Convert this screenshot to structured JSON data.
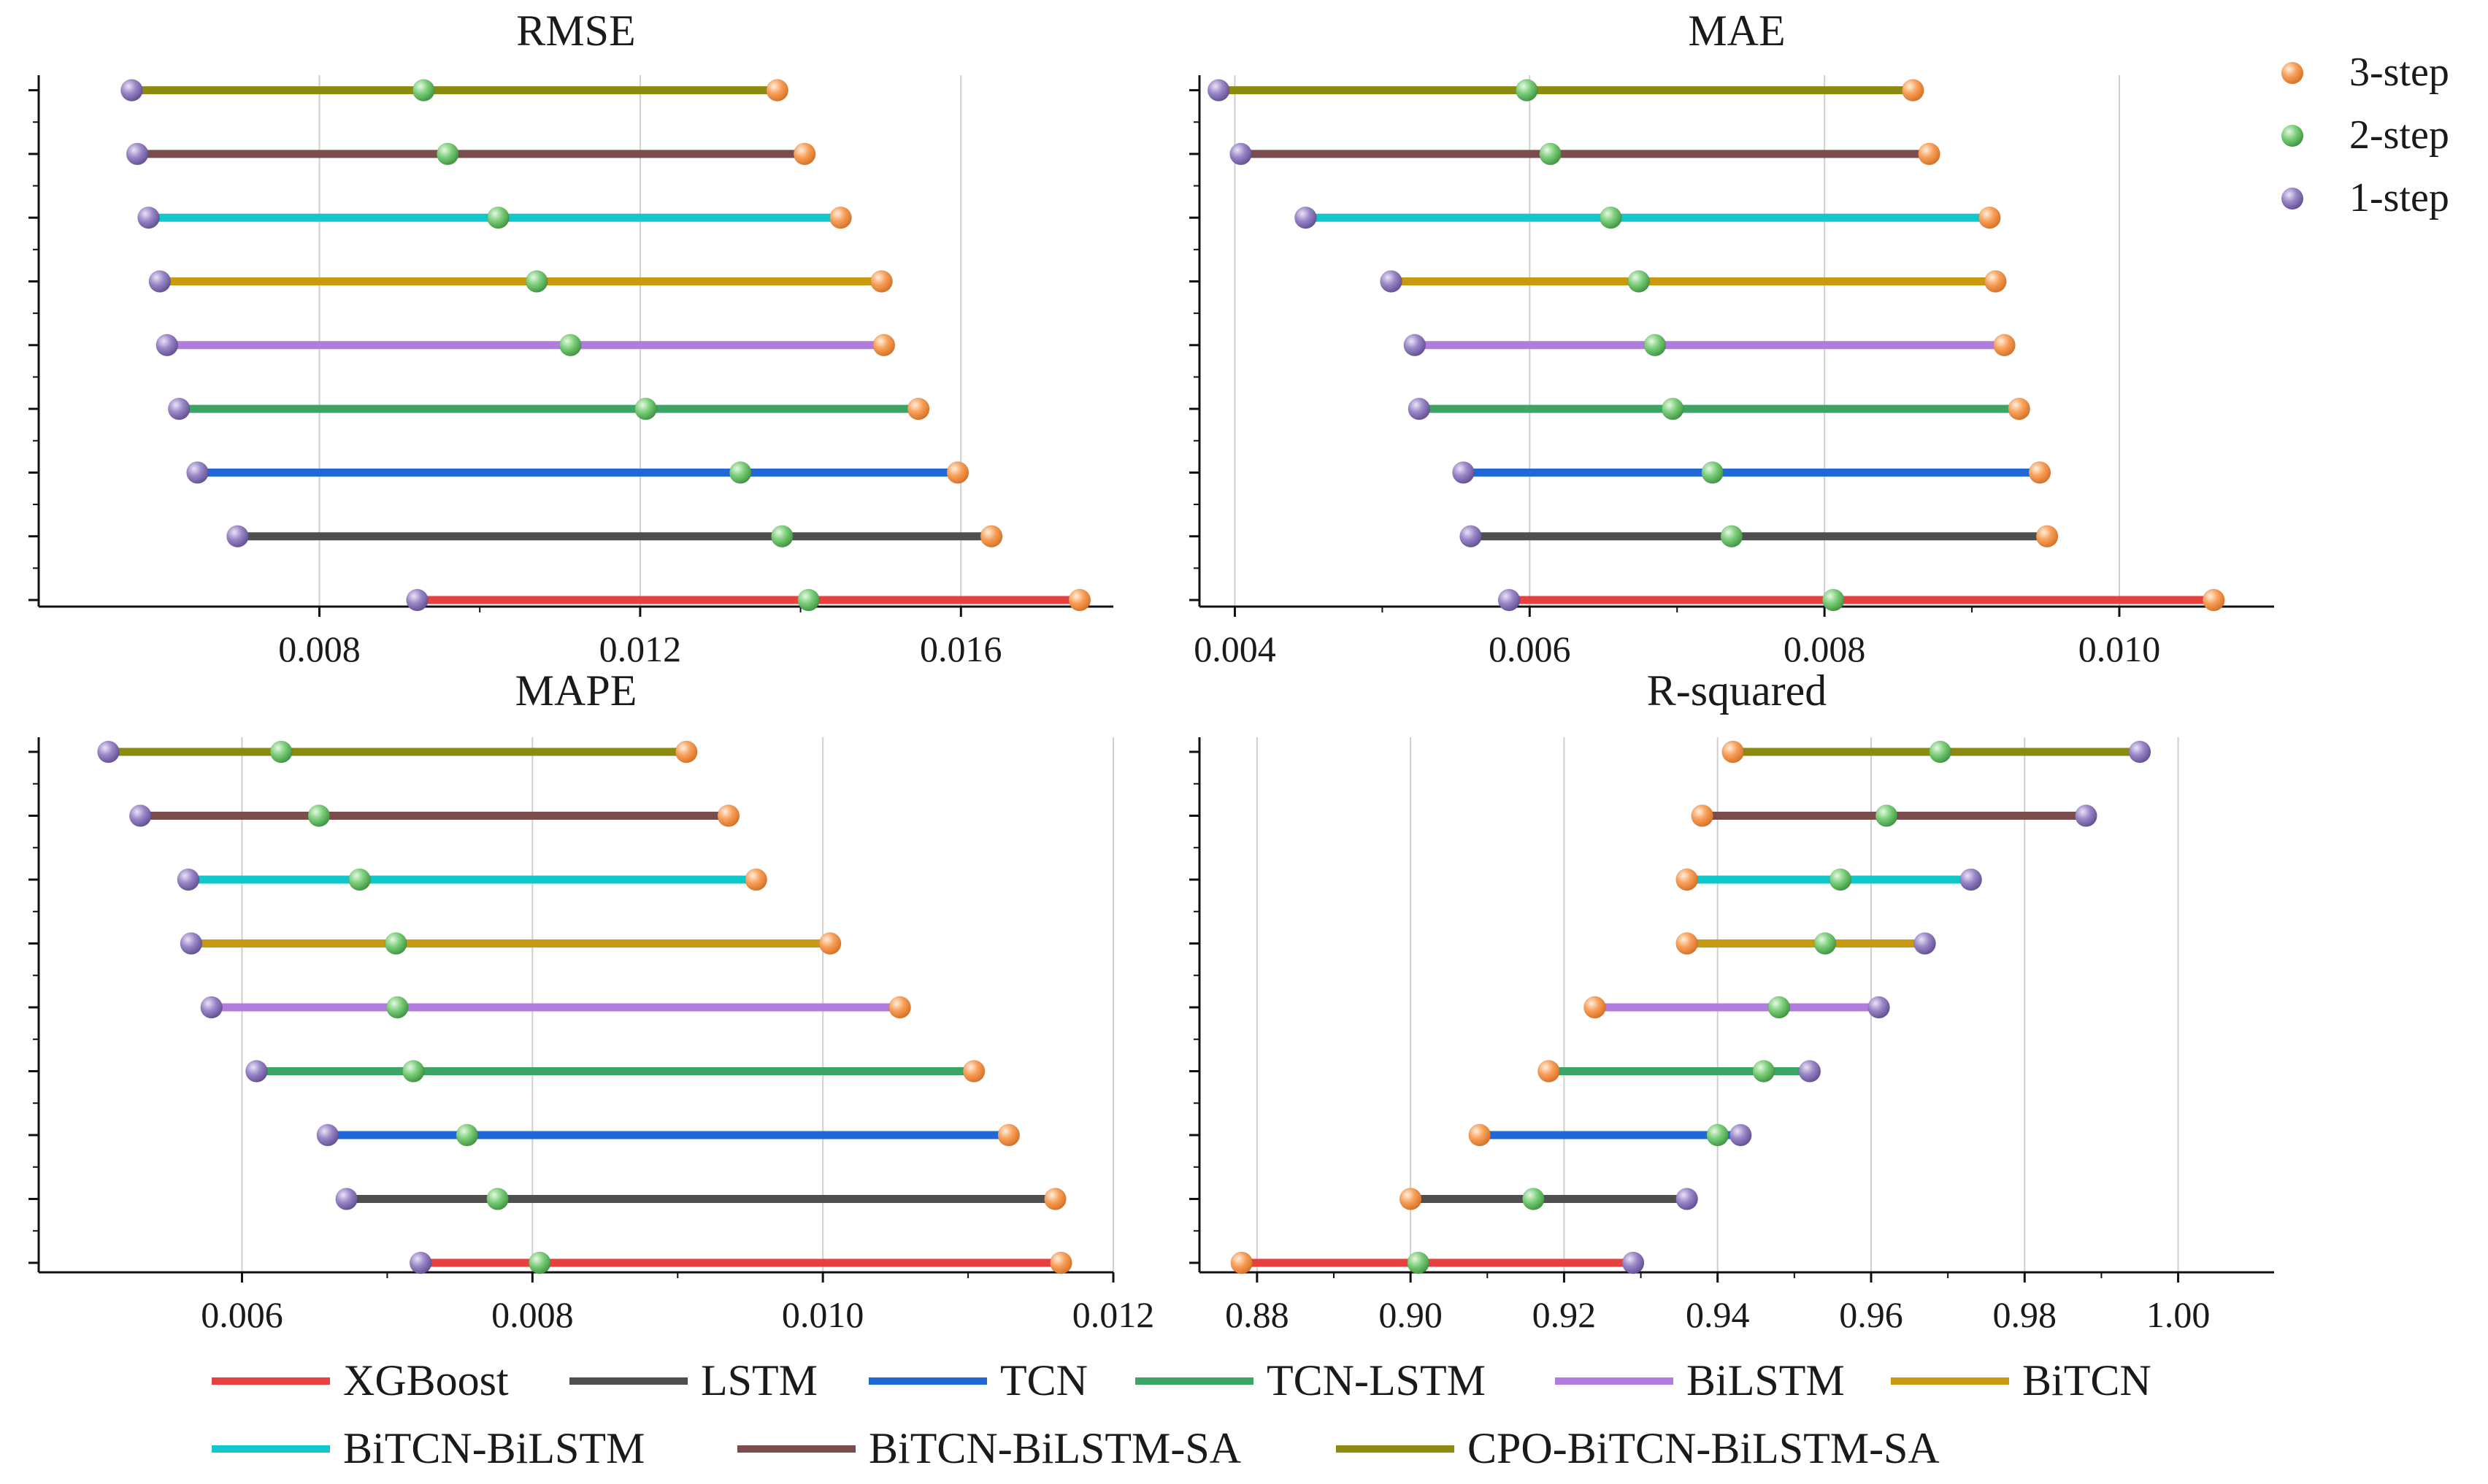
{
  "colors": {
    "XGBoost": "#e8403f",
    "LSTM": "#4f4f4f",
    "TCN": "#1f68d6",
    "TCN-LSTM": "#3aa564",
    "BiLSTM": "#b27bde",
    "BiTCN": "#c99a10",
    "BiTCN-BiLSTM": "#10c7cb",
    "BiTCN-BiLSTM-SA": "#7a4c4c",
    "CPO-BiTCN-BiLSTM-SA": "#8b8b10",
    "step3": "#f9a05a",
    "step2": "#7ccf7a",
    "step1": "#9a87c8"
  },
  "chart_data": [
    {
      "type": "dumbbell",
      "title": "RMSE",
      "xlim": [
        0.0045,
        0.0179
      ],
      "xticks": [
        0.008,
        0.012,
        0.016
      ],
      "xtick_labels": [
        "0.008",
        "0.012",
        "0.016"
      ],
      "series": [
        {
          "name": "XGBoost",
          "step1": 0.00922,
          "step2": 0.0141,
          "step3": 0.01748
        },
        {
          "name": "LSTM",
          "step1": 0.00698,
          "step2": 0.01377,
          "step3": 0.01638
        },
        {
          "name": "TCN",
          "step1": 0.00648,
          "step2": 0.01325,
          "step3": 0.01596
        },
        {
          "name": "TCN-LSTM",
          "step1": 0.00625,
          "step2": 0.01207,
          "step3": 0.01547
        },
        {
          "name": "BiLSTM",
          "step1": 0.0061,
          "step2": 0.01113,
          "step3": 0.01504
        },
        {
          "name": "BiTCN",
          "step1": 0.00601,
          "step2": 0.01071,
          "step3": 0.01501
        },
        {
          "name": "BiTCN-BiLSTM",
          "step1": 0.00587,
          "step2": 0.01023,
          "step3": 0.0145
        },
        {
          "name": "BiTCN-BiLSTM-SA",
          "step1": 0.00573,
          "step2": 0.0096,
          "step3": 0.01405
        },
        {
          "name": "CPO-BiTCN-BiLSTM-SA",
          "step1": 0.00566,
          "step2": 0.0093,
          "step3": 0.01371
        }
      ]
    },
    {
      "type": "dumbbell",
      "title": "MAE",
      "xlim": [
        0.00376,
        0.01105
      ],
      "xticks": [
        0.004,
        0.006,
        0.008,
        0.01
      ],
      "xtick_labels": [
        "0.004",
        "0.006",
        "0.008",
        "0.010"
      ],
      "series": [
        {
          "name": "XGBoost",
          "step1": 0.00586,
          "step2": 0.00806,
          "step3": 0.01064
        },
        {
          "name": "LSTM",
          "step1": 0.0056,
          "step2": 0.00737,
          "step3": 0.00951
        },
        {
          "name": "TCN",
          "step1": 0.00555,
          "step2": 0.00724,
          "step3": 0.00946
        },
        {
          "name": "TCN-LSTM",
          "step1": 0.00525,
          "step2": 0.00697,
          "step3": 0.00932
        },
        {
          "name": "BiLSTM",
          "step1": 0.00522,
          "step2": 0.00685,
          "step3": 0.00922
        },
        {
          "name": "BiTCN",
          "step1": 0.00506,
          "step2": 0.00674,
          "step3": 0.00916
        },
        {
          "name": "BiTCN-BiLSTM",
          "step1": 0.00448,
          "step2": 0.00655,
          "step3": 0.00912
        },
        {
          "name": "BiTCN-BiLSTM-SA",
          "step1": 0.00404,
          "step2": 0.00614,
          "step3": 0.00871
        },
        {
          "name": "CPO-BiTCN-BiLSTM-SA",
          "step1": 0.00389,
          "step2": 0.00598,
          "step3": 0.0086
        }
      ]
    },
    {
      "type": "dumbbell",
      "title": "MAPE",
      "xlim": [
        0.0046,
        0.012
      ],
      "xticks": [
        0.006,
        0.008,
        0.01,
        0.012
      ],
      "xtick_labels": [
        "0.006",
        "0.008",
        "0.010",
        "0.012"
      ],
      "series": [
        {
          "name": "XGBoost",
          "step1": 0.00723,
          "step2": 0.00805,
          "step3": 0.01164
        },
        {
          "name": "LSTM",
          "step1": 0.00672,
          "step2": 0.00776,
          "step3": 0.0116
        },
        {
          "name": "TCN",
          "step1": 0.00659,
          "step2": 0.00755,
          "step3": 0.01128
        },
        {
          "name": "TCN-LSTM",
          "step1": 0.0061,
          "step2": 0.00718,
          "step3": 0.01104
        },
        {
          "name": "BiLSTM",
          "step1": 0.00579,
          "step2": 0.00707,
          "step3": 0.01053
        },
        {
          "name": "BiTCN",
          "step1": 0.00565,
          "step2": 0.00706,
          "step3": 0.01005
        },
        {
          "name": "BiTCN-BiLSTM",
          "step1": 0.00563,
          "step2": 0.00681,
          "step3": 0.00954
        },
        {
          "name": "BiTCN-BiLSTM-SA",
          "step1": 0.0053,
          "step2": 0.00653,
          "step3": 0.00935
        },
        {
          "name": "CPO-BiTCN-BiLSTM-SA",
          "step1": 0.00508,
          "step2": 0.00627,
          "step3": 0.00906
        }
      ]
    },
    {
      "type": "dumbbell",
      "title": "R-squared",
      "xlim": [
        0.8725,
        1.0125
      ],
      "xticks": [
        0.88,
        0.9,
        0.92,
        0.94,
        0.96,
        0.98,
        1.0
      ],
      "xtick_labels": [
        "0.88",
        "0.90",
        "0.92",
        "0.94",
        "0.96",
        "0.98",
        "1.00"
      ],
      "series": [
        {
          "name": "XGBoost",
          "step1": 0.929,
          "step2": 0.901,
          "step3": 0.878
        },
        {
          "name": "LSTM",
          "step1": 0.936,
          "step2": 0.916,
          "step3": 0.9
        },
        {
          "name": "TCN",
          "step1": 0.943,
          "step2": 0.94,
          "step3": 0.909
        },
        {
          "name": "TCN-LSTM",
          "step1": 0.952,
          "step2": 0.946,
          "step3": 0.918
        },
        {
          "name": "BiLSTM",
          "step1": 0.961,
          "step2": 0.948,
          "step3": 0.924
        },
        {
          "name": "BiTCN",
          "step1": 0.967,
          "step2": 0.954,
          "step3": 0.936
        },
        {
          "name": "BiTCN-BiLSTM",
          "step1": 0.973,
          "step2": 0.956,
          "step3": 0.936
        },
        {
          "name": "BiTCN-BiLSTM-SA",
          "step1": 0.988,
          "step2": 0.962,
          "step3": 0.938
        },
        {
          "name": "CPO-BiTCN-BiLSTM-SA",
          "step1": 0.995,
          "step2": 0.969,
          "step3": 0.942
        }
      ]
    }
  ],
  "step_legend": [
    {
      "key": "step3",
      "label": "3-step"
    },
    {
      "key": "step2",
      "label": "2-step"
    },
    {
      "key": "step1",
      "label": "1-step"
    }
  ],
  "model_legend": [
    "XGBoost",
    "LSTM",
    "TCN",
    "TCN-LSTM",
    "BiLSTM",
    "BiTCN",
    "BiTCN-BiLSTM",
    "BiTCN-BiLSTM-SA",
    "CPO-BiTCN-BiLSTM-SA"
  ]
}
